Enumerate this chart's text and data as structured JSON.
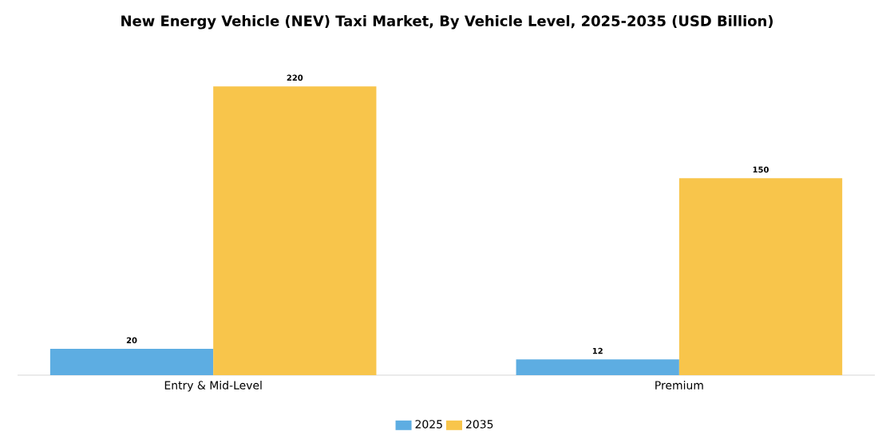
{
  "chart_data": {
    "type": "bar",
    "title": "New Energy Vehicle (NEV) Taxi Market, By Vehicle Level, 2025-2035 (USD Billion)",
    "categories": [
      "Entry & Mid-Level",
      "Premium"
    ],
    "series": [
      {
        "name": "2025",
        "color": "#5dade2",
        "values": [
          20,
          12
        ]
      },
      {
        "name": "2035",
        "color": "#f8c54b",
        "values": [
          220,
          150
        ]
      }
    ],
    "data_labels": true,
    "legend": "bottom",
    "grid": false
  }
}
